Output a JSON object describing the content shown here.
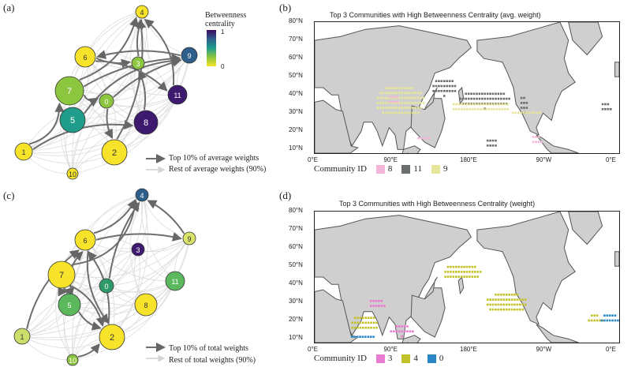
{
  "panel_labels": [
    "(a)",
    "(b)",
    "(c)",
    "(d)"
  ],
  "colorbar": {
    "title": "Betweenness centrality",
    "max": "1",
    "min": "0"
  },
  "graph_a": {
    "legend_top": "Top 10% of average weights",
    "legend_rest": "Rest  of average weights (90%)",
    "nodes": [
      {
        "id": "4",
        "color": "#f6e32a"
      },
      {
        "id": "6",
        "color": "#f6e32a"
      },
      {
        "id": "3",
        "color": "#8cc63f"
      },
      {
        "id": "9",
        "color": "#2d5f8a"
      },
      {
        "id": "7",
        "color": "#8cc63f"
      },
      {
        "id": "0",
        "color": "#8cc63f"
      },
      {
        "id": "11",
        "color": "#3d1a6e"
      },
      {
        "id": "5",
        "color": "#1f9d8a"
      },
      {
        "id": "8",
        "color": "#3d1a6e"
      },
      {
        "id": "1",
        "color": "#f6e32a"
      },
      {
        "id": "2",
        "color": "#f6e32a"
      },
      {
        "id": "10",
        "color": "#f6e32a"
      }
    ]
  },
  "graph_c": {
    "legend_top": "Top 10% of total weights",
    "legend_rest": "Rest  of total weights (90%)",
    "nodes": [
      {
        "id": "4",
        "color": "#2d5f8a"
      },
      {
        "id": "9",
        "color": "#dbe36a"
      },
      {
        "id": "6",
        "color": "#f6e32a"
      },
      {
        "id": "3",
        "color": "#3d1a6e"
      },
      {
        "id": "7",
        "color": "#f6e32a"
      },
      {
        "id": "0",
        "color": "#2e9a6a"
      },
      {
        "id": "11",
        "color": "#5cb85c"
      },
      {
        "id": "5",
        "color": "#5cb85c"
      },
      {
        "id": "8",
        "color": "#f6e32a"
      },
      {
        "id": "1",
        "color": "#c9df6a"
      },
      {
        "id": "2",
        "color": "#f6e32a"
      },
      {
        "id": "10",
        "color": "#8cc63f"
      }
    ]
  },
  "map_b": {
    "title": "Top 3 Communities with High Betweenness Centrality (avg. weight)",
    "legend_label": "Community ID",
    "communities": [
      {
        "id": "8",
        "color": "#f4b6d8"
      },
      {
        "id": "11",
        "color": "#6b6f6f"
      },
      {
        "id": "9",
        "color": "#e6e69a"
      }
    ]
  },
  "map_d": {
    "title": "Top 3 Communities with High Betweenness Centrality (weight)",
    "legend_label": "Community ID",
    "communities": [
      {
        "id": "3",
        "color": "#e97bd0"
      },
      {
        "id": "4",
        "color": "#c2c22a"
      },
      {
        "id": "0",
        "color": "#2a86c4"
      }
    ]
  },
  "map_axes": {
    "y_ticks": [
      "80°N",
      "70°N",
      "60°N",
      "50°N",
      "40°N",
      "30°N",
      "20°N",
      "10°N"
    ],
    "x_ticks": [
      "0°E",
      "90°E",
      "180°E",
      "90°W",
      "0°E"
    ]
  }
}
